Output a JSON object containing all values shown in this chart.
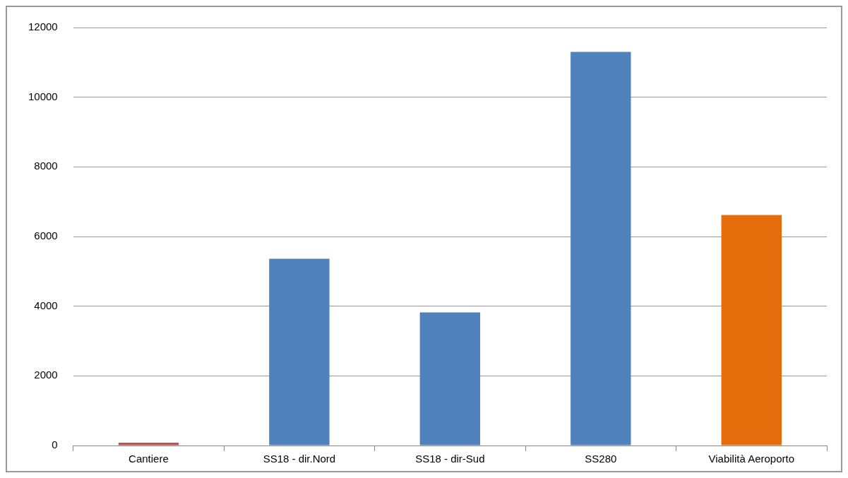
{
  "chart_data": {
    "type": "bar",
    "categories": [
      "Cantiere",
      "SS18 - dir.Nord",
      "SS18 - dir-Sud",
      "SS280",
      "Viabilità Aeroporto"
    ],
    "values": [
      80,
      5360,
      3820,
      11300,
      6620
    ],
    "colors": [
      "#c0504d",
      "#4f81bd",
      "#4f81bd",
      "#4f81bd",
      "#e46c0a"
    ],
    "ylim": [
      0,
      12000
    ],
    "yticks": [
      0,
      2000,
      4000,
      6000,
      8000,
      10000,
      12000
    ],
    "grid": "y",
    "legend": false
  }
}
